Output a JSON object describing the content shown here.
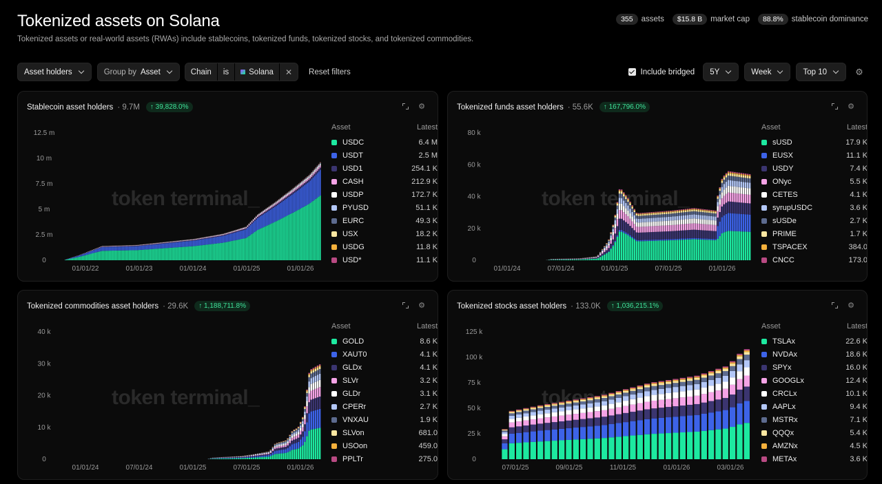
{
  "header": {
    "title": "Tokenized assets on Solana",
    "subtitle": "Tokenized assets or real-world assets (RWAs) include stablecoins, tokenized funds, tokenized stocks, and tokenized commodities.",
    "stats": [
      {
        "value": "355",
        "label": "assets"
      },
      {
        "value": "$15.8 B",
        "label": "market cap"
      },
      {
        "value": "88.8%",
        "label": "stablecoin dominance"
      }
    ]
  },
  "toolbar": {
    "metric": "Asset holders",
    "group_prefix": "Group by",
    "group_value": "Asset",
    "filter_field": "Chain",
    "filter_op": "is",
    "filter_value": "Solana",
    "filter_clear": "✕",
    "reset": "Reset filters",
    "include_bridged": "Include bridged",
    "range": "5Y",
    "granularity": "Week",
    "top": "Top 10"
  },
  "watermark": "token terminal_",
  "legend_headers": {
    "asset": "Asset",
    "latest": "Latest"
  },
  "cards": [
    {
      "title": "Stablecoin asset holders",
      "value": "· 9.7M",
      "change": "↑ 39,828.0%",
      "legend": [
        {
          "name": "USDC",
          "latest": "6.4 M",
          "color": "#1de9a0"
        },
        {
          "name": "USDT",
          "latest": "2.5 M",
          "color": "#3d63e8"
        },
        {
          "name": "USD1",
          "latest": "254.1 K",
          "color": "#3b3570"
        },
        {
          "name": "CASH",
          "latest": "212.9 K",
          "color": "#f5a3e6"
        },
        {
          "name": "USDP",
          "latest": "172.7 K",
          "color": "#ffffff"
        },
        {
          "name": "PYUSD",
          "latest": "51.1 K",
          "color": "#b3c7f7"
        },
        {
          "name": "EURC",
          "latest": "49.3 K",
          "color": "#5d6b8f"
        },
        {
          "name": "USX",
          "latest": "18.2 K",
          "color": "#fbe7a1"
        },
        {
          "name": "USDG",
          "latest": "11.8 K",
          "color": "#f5b13c"
        },
        {
          "name": "USD*",
          "latest": "11.1 K",
          "color": "#b94a83"
        }
      ]
    },
    {
      "title": "Tokenized funds asset holders",
      "value": "· 55.6K",
      "change": "↑ 167,796.0%",
      "legend": [
        {
          "name": "sUSD",
          "latest": "17.9 K",
          "color": "#1de9a0"
        },
        {
          "name": "EUSX",
          "latest": "11.1 K",
          "color": "#3d63e8"
        },
        {
          "name": "USDY",
          "latest": "7.4 K",
          "color": "#3b3570"
        },
        {
          "name": "ONyc",
          "latest": "5.5 K",
          "color": "#f5a3e6"
        },
        {
          "name": "CETES",
          "latest": "4.1 K",
          "color": "#ffffff"
        },
        {
          "name": "syrupUSDC",
          "latest": "3.6 K",
          "color": "#b3c7f7"
        },
        {
          "name": "sUSDe",
          "latest": "2.7 K",
          "color": "#5d6b8f"
        },
        {
          "name": "PRIME",
          "latest": "1.7 K",
          "color": "#fbe7a1"
        },
        {
          "name": "TSPACEX",
          "latest": "384.0",
          "color": "#f5b13c"
        },
        {
          "name": "CNCC",
          "latest": "173.0",
          "color": "#b94a83"
        }
      ]
    },
    {
      "title": "Tokenized commodities asset holders",
      "value": "· 29.6K",
      "change": "↑ 1,188,711.8%",
      "legend": [
        {
          "name": "GOLD",
          "latest": "8.6 K",
          "color": "#1de9a0"
        },
        {
          "name": "XAUT0",
          "latest": "4.1 K",
          "color": "#3d63e8"
        },
        {
          "name": "GLDx",
          "latest": "4.1 K",
          "color": "#3b3570"
        },
        {
          "name": "SLVr",
          "latest": "3.2 K",
          "color": "#f5a3e6"
        },
        {
          "name": "GLDr",
          "latest": "3.1 K",
          "color": "#ffffff"
        },
        {
          "name": "CPERr",
          "latest": "2.7 K",
          "color": "#b3c7f7"
        },
        {
          "name": "VNXAU",
          "latest": "1.9 K",
          "color": "#5d6b8f"
        },
        {
          "name": "SLVon",
          "latest": "681.0",
          "color": "#fbe7a1"
        },
        {
          "name": "USOon",
          "latest": "459.0",
          "color": "#f5b13c"
        },
        {
          "name": "PPLTr",
          "latest": "275.0",
          "color": "#b94a83"
        }
      ]
    },
    {
      "title": "Tokenized stocks asset holders",
      "value": "· 133.0K",
      "change": "↑ 1,036,215.1%",
      "legend": [
        {
          "name": "TSLAx",
          "latest": "22.6 K",
          "color": "#1de9a0"
        },
        {
          "name": "NVDAx",
          "latest": "18.6 K",
          "color": "#3d63e8"
        },
        {
          "name": "SPYx",
          "latest": "16.0 K",
          "color": "#3b3570"
        },
        {
          "name": "GOOGLx",
          "latest": "12.4 K",
          "color": "#f5a3e6"
        },
        {
          "name": "CRCLx",
          "latest": "10.1 K",
          "color": "#ffffff"
        },
        {
          "name": "AAPLx",
          "latest": "9.4 K",
          "color": "#b3c7f7"
        },
        {
          "name": "MSTRx",
          "latest": "7.1 K",
          "color": "#5d6b8f"
        },
        {
          "name": "QQQx",
          "latest": "5.4 K",
          "color": "#fbe7a1"
        },
        {
          "name": "AMZNx",
          "latest": "4.5 K",
          "color": "#f5b13c"
        },
        {
          "name": "METAx",
          "latest": "3.6 K",
          "color": "#b94a83"
        }
      ]
    }
  ],
  "chart_data": [
    {
      "type": "bar",
      "stacked": true,
      "yticks": [
        "0",
        "2.5 m",
        "5 m",
        "7.5 m",
        "10 m",
        "12.5 m"
      ],
      "ylim": [
        0,
        12.5
      ],
      "xticks": [
        "01/01/22",
        "01/01/23",
        "01/01/24",
        "01/01/25",
        "01/01/26"
      ],
      "x_start": 2021.75,
      "x_end": 2026.2,
      "series_totals_shape": [
        [
          2021.75,
          0.05
        ],
        [
          2022.0,
          0.5
        ],
        [
          2022.4,
          1.4
        ],
        [
          2023.0,
          1.5
        ],
        [
          2023.5,
          1.8
        ],
        [
          2024.0,
          2.1
        ],
        [
          2024.5,
          2.6
        ],
        [
          2024.9,
          3.3
        ],
        [
          2025.1,
          4.5
        ],
        [
          2025.4,
          5.7
        ],
        [
          2025.7,
          7.0
        ],
        [
          2026.0,
          8.4
        ],
        [
          2026.2,
          9.7
        ]
      ],
      "usdc_share": 0.66,
      "usdt_share": 0.26
    },
    {
      "type": "bar",
      "stacked": true,
      "yticks": [
        "0",
        "20 k",
        "40 k",
        "60 k",
        "80 k"
      ],
      "ylim": [
        0,
        80
      ],
      "xticks": [
        "01/01/24",
        "07/01/24",
        "01/01/25",
        "07/01/25",
        "01/01/26"
      ],
      "x_start": 2023.95,
      "x_end": 2026.2,
      "series_totals_shape": [
        [
          2024.4,
          0
        ],
        [
          2024.45,
          1
        ],
        [
          2024.7,
          1.5
        ],
        [
          2024.85,
          3
        ],
        [
          2024.95,
          15
        ],
        [
          2025.0,
          30
        ],
        [
          2025.05,
          56
        ],
        [
          2025.12,
          48
        ],
        [
          2025.2,
          36
        ],
        [
          2025.5,
          38
        ],
        [
          2025.7,
          40
        ],
        [
          2025.9,
          38
        ],
        [
          2025.95,
          52
        ],
        [
          2026.0,
          56
        ],
        [
          2026.2,
          54
        ]
      ]
    },
    {
      "type": "bar",
      "stacked": true,
      "yticks": [
        "0",
        "10 k",
        "20 k",
        "30 k",
        "40 k"
      ],
      "ylim": [
        0,
        40
      ],
      "xticks": [
        "01/01/24",
        "07/01/24",
        "01/01/25",
        "07/01/25",
        "01/01/26"
      ],
      "x_start": 2023.95,
      "x_end": 2026.2,
      "series_totals_shape": [
        [
          2025.2,
          0
        ],
        [
          2025.25,
          0.5
        ],
        [
          2025.5,
          1
        ],
        [
          2025.6,
          1.5
        ],
        [
          2025.75,
          2.5
        ],
        [
          2025.8,
          5
        ],
        [
          2025.9,
          6
        ],
        [
          2025.95,
          9
        ],
        [
          2026.0,
          10
        ],
        [
          2026.05,
          14
        ],
        [
          2026.1,
          28
        ],
        [
          2026.2,
          30
        ]
      ]
    },
    {
      "type": "bar",
      "stacked": true,
      "yticks": [
        "0",
        "25 k",
        "50 k",
        "75 k",
        "100 k",
        "125 k"
      ],
      "ylim": [
        0,
        125
      ],
      "xticks": [
        "07/01/25",
        "09/01/25",
        "11/01/25",
        "01/01/26",
        "03/01/26"
      ],
      "x_start": 2025.45,
      "x_end": 2026.27,
      "series_totals_shape": [
        [
          2025.48,
          25
        ],
        [
          2025.5,
          47
        ],
        [
          2025.6,
          53
        ],
        [
          2025.8,
          63
        ],
        [
          2025.95,
          75
        ],
        [
          2026.1,
          82
        ],
        [
          2026.2,
          92
        ],
        [
          2026.25,
          108
        ]
      ]
    }
  ]
}
